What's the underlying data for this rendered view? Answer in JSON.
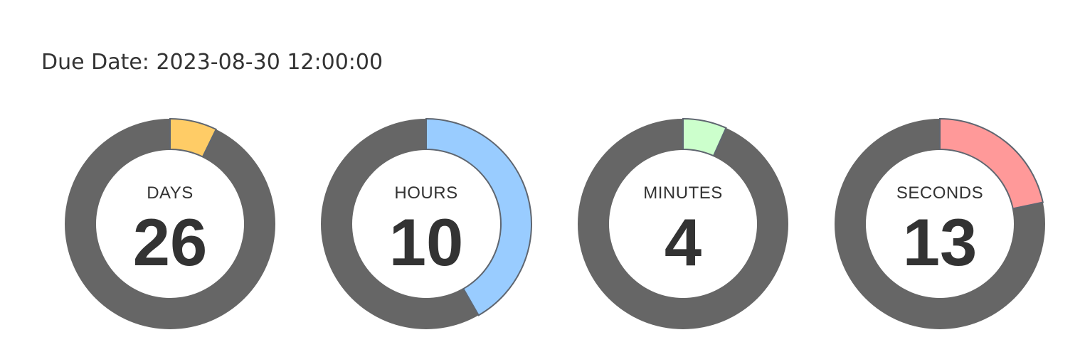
{
  "due_date": {
    "text": "Due Date: 2023-08-30 12:00:00"
  },
  "colors": {
    "track": "#666666",
    "arc_stroke": "#5f6670",
    "inner": "#ffffff"
  },
  "timers": [
    {
      "label": "DAYS",
      "value": "26",
      "progress": 0.072,
      "color": "#ffcc66"
    },
    {
      "label": "HOURS",
      "value": "10",
      "progress": 0.417,
      "color": "#99ccff"
    },
    {
      "label": "MINUTES",
      "value": "4",
      "progress": 0.067,
      "color": "#ccffcc"
    },
    {
      "label": "SECONDS",
      "value": "13",
      "progress": 0.217,
      "color": "#ff9999"
    }
  ]
}
